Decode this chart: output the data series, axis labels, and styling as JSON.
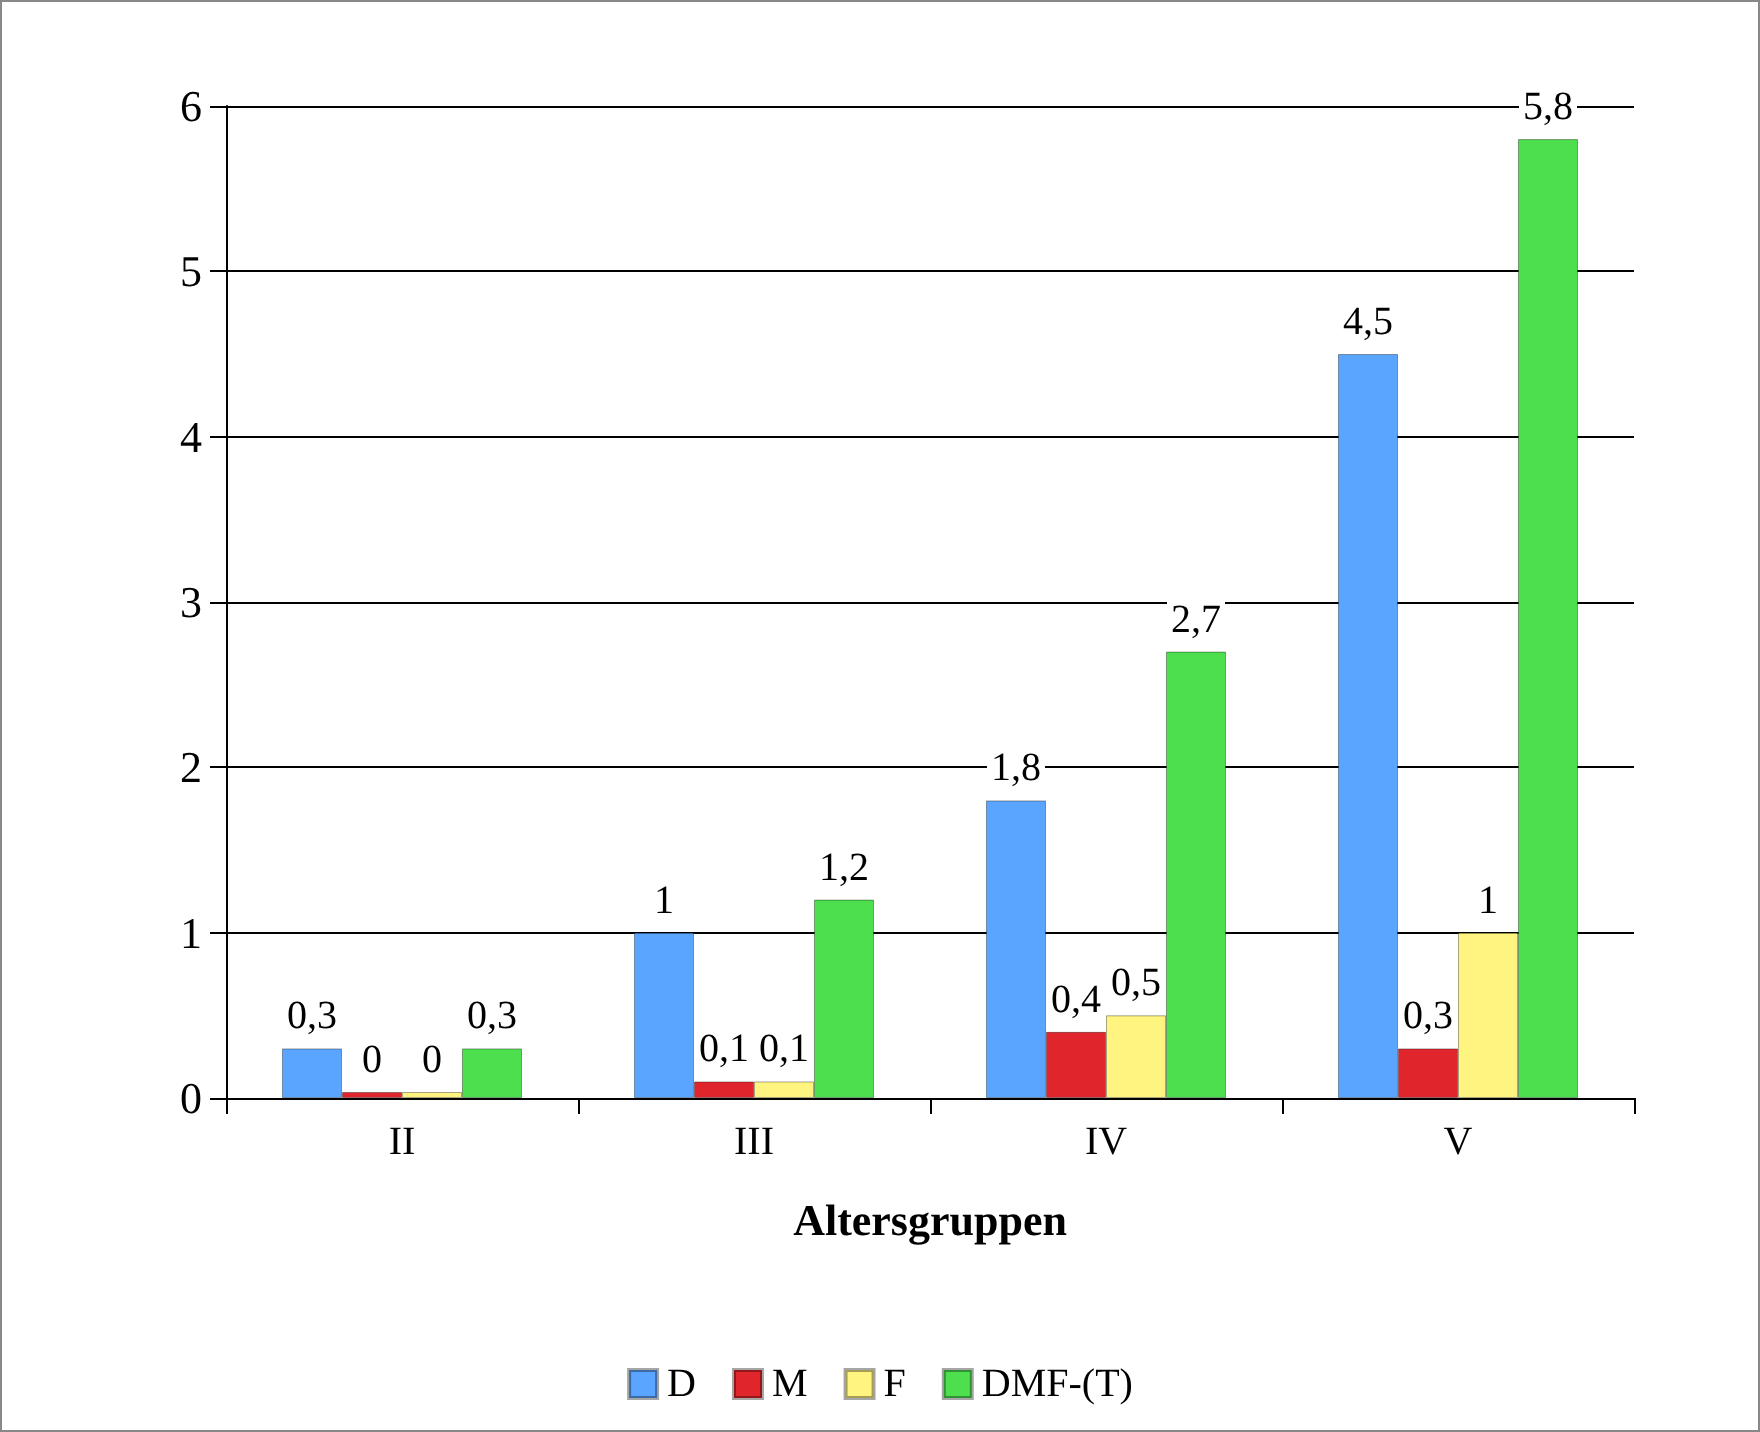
{
  "chart_data": {
    "type": "bar",
    "xlabel": "Altersgruppen",
    "categories": [
      "II",
      "III",
      "IV",
      "V"
    ],
    "series": [
      {
        "name": "D",
        "color": "#5aa5ff",
        "values": [
          0.3,
          1,
          1.8,
          4.5
        ],
        "value_labels": [
          "0,3",
          "1",
          "1,8",
          "4,5"
        ]
      },
      {
        "name": "M",
        "color": "#e0262c",
        "values": [
          0,
          0.1,
          0.4,
          0.3
        ],
        "value_labels": [
          "0",
          "0,1",
          "0,4",
          "0,3"
        ]
      },
      {
        "name": "F",
        "color": "#fff480",
        "values": [
          0,
          0.1,
          0.5,
          1
        ],
        "value_labels": [
          "0",
          "0,1",
          "0,5",
          "1"
        ]
      },
      {
        "name": "DMF-(T)",
        "color": "#4ddf4d",
        "values": [
          0.3,
          1.2,
          2.7,
          5.8
        ],
        "value_labels": [
          "0,3",
          "1,2",
          "2,7",
          "5,8"
        ]
      }
    ],
    "ylim": [
      0,
      6
    ],
    "yticks": [
      0,
      1,
      2,
      3,
      4,
      5,
      6
    ],
    "grid": "y",
    "legend": "bottom"
  }
}
